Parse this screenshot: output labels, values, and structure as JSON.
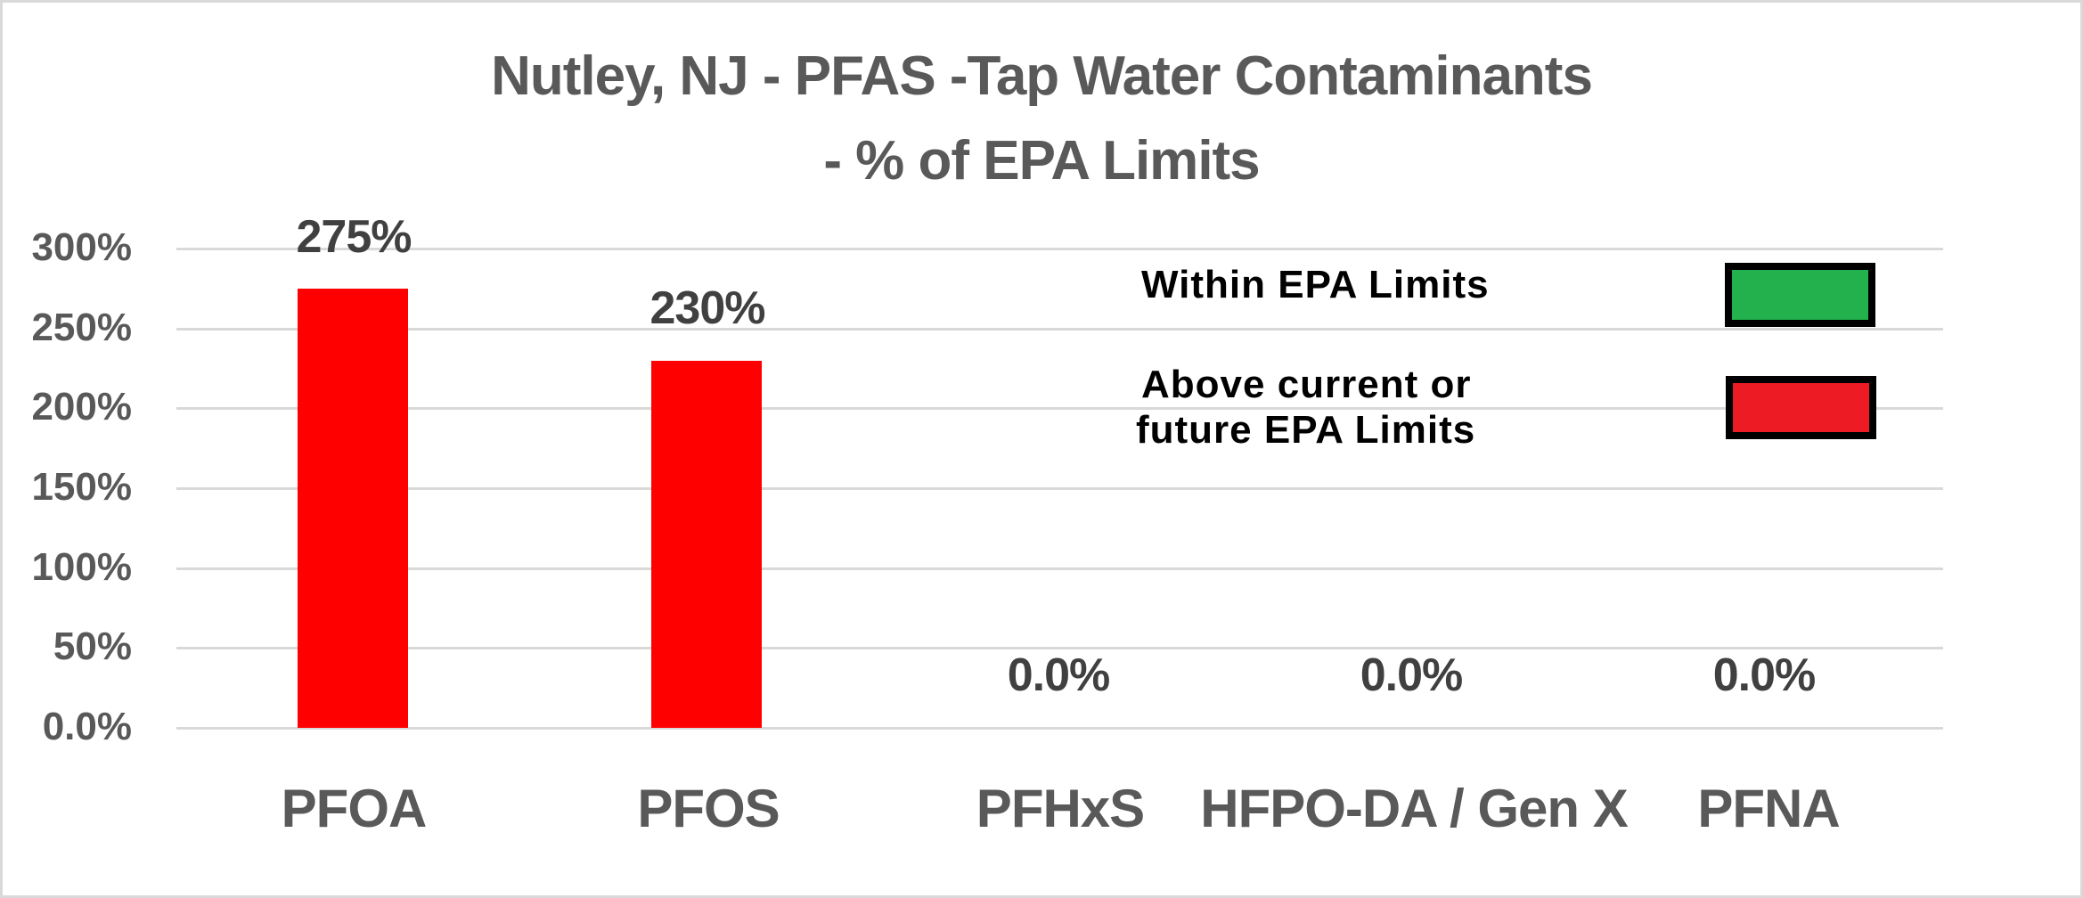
{
  "chart_data": {
    "type": "bar",
    "title": "Nutley, NJ - PFAS -Tap Water Contaminants - % of EPA Limits",
    "title_lines": [
      "Nutley, NJ - PFAS -Tap Water Contaminants",
      "- % of EPA Limits"
    ],
    "categories": [
      "PFOA",
      "PFOS",
      "PFHxS",
      "HFPO-DA / Gen X",
      "PFNA"
    ],
    "values": [
      275,
      230,
      0,
      0,
      0
    ],
    "value_labels": [
      "275%",
      "230%",
      "0.0%",
      "0.0%",
      "0.0%"
    ],
    "bar_colors": [
      "#FF0000",
      "#FF0000",
      "#FF0000",
      "#FF0000",
      "#FF0000"
    ],
    "xlabel": "",
    "ylabel": "",
    "ylim": [
      0,
      300
    ],
    "yticks": [
      0,
      50,
      100,
      150,
      200,
      250,
      300
    ],
    "ytick_labels": [
      "0.0%",
      "50%",
      "100%",
      "150%",
      "200%",
      "250%",
      "300%"
    ],
    "grid": true,
    "legend": {
      "position": "upper-right",
      "entries": [
        {
          "label": "Within EPA Limits",
          "color": "#22B14C"
        },
        {
          "label": "Above current or future EPA Limits",
          "label_lines": [
            "Above current or",
            "future EPA Limits"
          ],
          "color": "#ED1C24"
        }
      ]
    }
  }
}
